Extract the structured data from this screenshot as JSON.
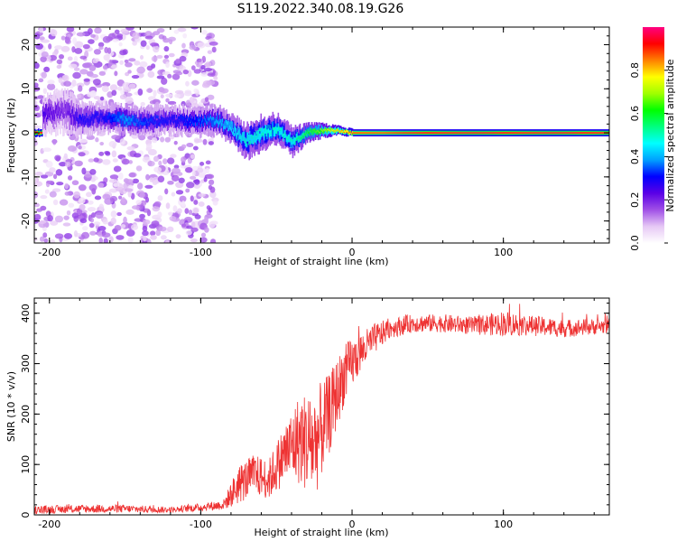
{
  "figure": {
    "title": "S119.2022.340.08.19.G26"
  },
  "chart_data": [
    {
      "type": "heatmap",
      "xlabel": "Height of straight line (km)",
      "ylabel": "Frequency (Hz)",
      "xlim": [
        -210,
        170
      ],
      "ylim": [
        -25,
        24
      ],
      "xticks": [
        -200,
        -100,
        0,
        100
      ],
      "yticks": [
        -20,
        -10,
        0,
        10,
        20
      ],
      "colorbar": {
        "label": "Normalized spectral amplitude",
        "range": [
          0.0,
          1.0
        ],
        "ticks": [
          0.0,
          0.2,
          0.4,
          0.6,
          0.8
        ],
        "colors": [
          "#ffffff",
          "#e6c8f5",
          "#a050e6",
          "#5a00e6",
          "#0000ff",
          "#00a0ff",
          "#00ffff",
          "#00ff80",
          "#00ff00",
          "#a0ff00",
          "#ffff00",
          "#ff8000",
          "#ff0000",
          "#ff0080"
        ]
      },
      "scatter_region": {
        "x": [
          -210,
          -90
        ],
        "y": [
          -25,
          24
        ],
        "amplitude": [
          0.03,
          0.18
        ]
      },
      "ridge": [
        {
          "x": -205,
          "freq": 4.0,
          "width": 4.0,
          "amplitude": 0.25
        },
        {
          "x": -190,
          "freq": 5.0,
          "width": 4.5,
          "amplitude": 0.2
        },
        {
          "x": -180,
          "freq": 3.0,
          "width": 3.5,
          "amplitude": 0.3
        },
        {
          "x": -165,
          "freq": 3.5,
          "width": 3.0,
          "amplitude": 0.3
        },
        {
          "x": -150,
          "freq": 3.0,
          "width": 3.0,
          "amplitude": 0.4
        },
        {
          "x": -140,
          "freq": 2.5,
          "width": 3.0,
          "amplitude": 0.35
        },
        {
          "x": -120,
          "freq": 3.0,
          "width": 3.0,
          "amplitude": 0.3
        },
        {
          "x": -100,
          "freq": 2.5,
          "width": 3.0,
          "amplitude": 0.35
        },
        {
          "x": -90,
          "freq": 3.0,
          "width": 3.0,
          "amplitude": 0.4
        },
        {
          "x": -80,
          "freq": 1.0,
          "width": 3.0,
          "amplitude": 0.45
        },
        {
          "x": -70,
          "freq": -2.0,
          "width": 3.5,
          "amplitude": 0.5
        },
        {
          "x": -60,
          "freq": 0.0,
          "width": 3.5,
          "amplitude": 0.5
        },
        {
          "x": -50,
          "freq": 1.0,
          "width": 3.0,
          "amplitude": 0.5
        },
        {
          "x": -40,
          "freq": -2.0,
          "width": 3.0,
          "amplitude": 0.5
        },
        {
          "x": -30,
          "freq": 0.0,
          "width": 2.0,
          "amplitude": 0.6
        },
        {
          "x": -20,
          "freq": 0.5,
          "width": 1.5,
          "amplitude": 0.7
        },
        {
          "x": -10,
          "freq": 0.5,
          "width": 1.0,
          "amplitude": 0.8
        },
        {
          "x": 0,
          "freq": 0.0,
          "width": 0.8,
          "amplitude": 0.9
        },
        {
          "x": 20,
          "freq": 0.0,
          "width": 0.8,
          "amplitude": 0.9
        },
        {
          "x": 50,
          "freq": 0.0,
          "width": 0.8,
          "amplitude": 0.95
        },
        {
          "x": 100,
          "freq": 0.0,
          "width": 0.8,
          "amplitude": 0.95
        },
        {
          "x": 170,
          "freq": 0.0,
          "width": 0.8,
          "amplitude": 0.95
        }
      ]
    },
    {
      "type": "line",
      "xlabel": "Height of straight line (km)",
      "ylabel": "SNR (10 * v/v)",
      "xlim": [
        -210,
        170
      ],
      "ylim": [
        0,
        430
      ],
      "xticks": [
        -200,
        -100,
        0,
        100
      ],
      "yticks": [
        0,
        100,
        200,
        300,
        400
      ],
      "series": [
        {
          "color": "#ee3333",
          "envelope": {
            "x": [
              -210,
              -180,
              -150,
              -120,
              -100,
              -85,
              -75,
              -65,
              -55,
              -45,
              -35,
              -25,
              -15,
              -5,
              5,
              15,
              25,
              40,
              60,
              80,
              100,
              120,
              140,
              170
            ],
            "y": [
              10,
              12,
              12,
              10,
              15,
              20,
              60,
              80,
              70,
              120,
              150,
              140,
              200,
              280,
              320,
              350,
              370,
              380,
              380,
              375,
              380,
              375,
              370,
              375
            ],
            "noise": [
              8,
              8,
              8,
              6,
              8,
              10,
              40,
              40,
              40,
              60,
              90,
              110,
              80,
              60,
              40,
              30,
              20,
              18,
              18,
              18,
              25,
              20,
              18,
              15
            ]
          }
        }
      ]
    }
  ]
}
